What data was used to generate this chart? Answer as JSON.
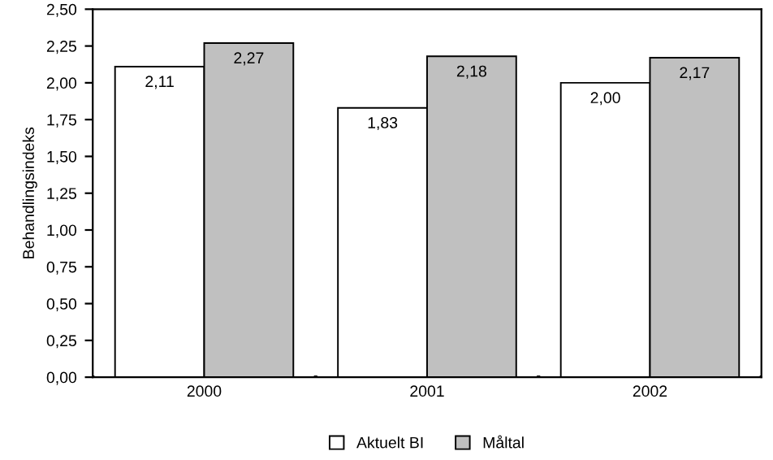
{
  "chart_data": {
    "type": "bar",
    "ylabel": "Behandlingsindeks",
    "categories": [
      "2000",
      "2001",
      "2002"
    ],
    "series": [
      {
        "name": "Aktuelt BI",
        "color": "#ffffff",
        "values": [
          2.11,
          1.83,
          2.0
        ],
        "value_labels": [
          "2,11",
          "1,83",
          "2,00"
        ]
      },
      {
        "name": "Måltal",
        "color": "#c0c0c0",
        "values": [
          2.27,
          2.18,
          2.17
        ],
        "value_labels": [
          "2,27",
          "2,18",
          "2,17"
        ]
      }
    ],
    "ylim": [
      0,
      2.5
    ],
    "yticks": [
      {
        "value": 0,
        "label": "0,00"
      },
      {
        "value": 0.25,
        "label": "0,25"
      },
      {
        "value": 0.5,
        "label": "0,50"
      },
      {
        "value": 0.75,
        "label": "0,75"
      },
      {
        "value": 1,
        "label": "1,00"
      },
      {
        "value": 1.25,
        "label": "1,25"
      },
      {
        "value": 1.5,
        "label": "1,50"
      },
      {
        "value": 1.75,
        "label": "1,75"
      },
      {
        "value": 2,
        "label": "2,00"
      },
      {
        "value": 2.25,
        "label": "2,25"
      },
      {
        "value": 2.5,
        "label": "2,50"
      }
    ],
    "grid": false,
    "legend": "bottom"
  }
}
